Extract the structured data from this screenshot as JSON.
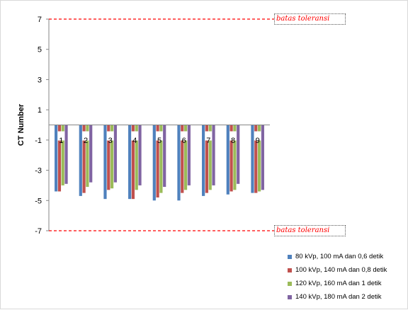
{
  "chart_data": {
    "type": "bar",
    "title": "",
    "xlabel": "",
    "ylabel": "CT Number",
    "ylim": [
      -7,
      7
    ],
    "yticks": [
      7,
      5,
      3,
      1,
      -1,
      -3,
      -5,
      -7
    ],
    "categories": [
      "1",
      "2",
      "3",
      "4",
      "5",
      "6",
      "7",
      "8",
      "9"
    ],
    "series": [
      {
        "name": "80 kVp, 100 mA dan 0,6 detik",
        "color": "#4f81bd",
        "values": [
          -4.4,
          -4.7,
          -4.9,
          -4.9,
          -5.0,
          -5.0,
          -4.7,
          -4.6,
          -4.5
        ]
      },
      {
        "name": "100 kVp, 140 mA dan 0,8 detik",
        "color": "#c0504d",
        "values": [
          -4.4,
          -4.5,
          -4.3,
          -4.9,
          -4.8,
          -4.5,
          -4.5,
          -4.4,
          -4.5
        ]
      },
      {
        "name": "120 kVp, 160 mA dan 1 detik",
        "color": "#9bbb59",
        "values": [
          -4.0,
          -4.1,
          -4.2,
          -4.3,
          -4.5,
          -4.3,
          -4.3,
          -4.3,
          -4.4
        ]
      },
      {
        "name": "140 kVp, 180 mA dan 2 detik",
        "color": "#8064a2",
        "values": [
          -3.9,
          -3.8,
          -3.8,
          -4.0,
          -4.1,
          -4.0,
          -4.0,
          -3.9,
          -4.3
        ]
      }
    ],
    "reference_lines": [
      {
        "value": 7,
        "label": "batas toleransi",
        "color": "#ff0000"
      },
      {
        "value": -7,
        "label": "batas toleransi",
        "color": "#ff0000"
      }
    ],
    "legend_position": "bottom-right",
    "grid": false
  }
}
